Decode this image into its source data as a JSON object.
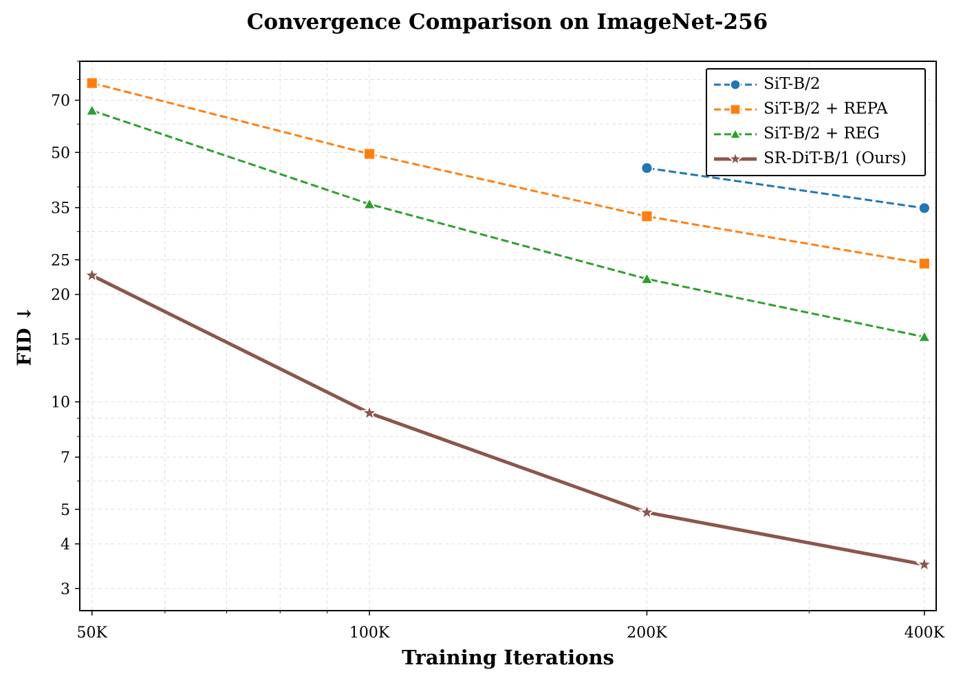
{
  "chart_data": {
    "type": "line",
    "title": "Convergence Comparison on ImageNet-256",
    "xlabel": "Training Iterations",
    "ylabel": "FID ↓",
    "x_scale": "log",
    "y_scale": "log",
    "x": [
      50000,
      100000,
      200000,
      400000
    ],
    "x_tick_labels": [
      "50K",
      "100K",
      "200K",
      "400K"
    ],
    "y_ticks": [
      3,
      4,
      5,
      7,
      10,
      15,
      20,
      25,
      35,
      50,
      70
    ],
    "y_tick_labels": [
      "3",
      "4",
      "5",
      "7",
      "10",
      "15",
      "20",
      "25",
      "35",
      "50",
      "70"
    ],
    "xlim": [
      48500,
      412000
    ],
    "ylim": [
      2.6,
      90
    ],
    "grid": true,
    "legend_position": "top-right",
    "series": [
      {
        "name": "SiT-B/2",
        "color": "#1f77b4",
        "marker": "circle",
        "linestyle": "dashed",
        "values": [
          null,
          null,
          45.2,
          34.9
        ]
      },
      {
        "name": "SiT-B/2 + REPA",
        "color": "#ff7f0e",
        "marker": "square",
        "linestyle": "dashed",
        "values": [
          78.2,
          49.5,
          33.1,
          24.4
        ]
      },
      {
        "name": "SiT-B/2 + REG",
        "color": "#2ca02c",
        "marker": "triangle",
        "linestyle": "dashed",
        "values": [
          65.5,
          35.8,
          22.1,
          15.2
        ]
      },
      {
        "name": "SR-DiT-B/1 (Ours)",
        "color": "#8c564b",
        "marker": "star",
        "linestyle": "solid",
        "values": [
          22.6,
          9.3,
          4.9,
          3.5
        ]
      }
    ]
  }
}
